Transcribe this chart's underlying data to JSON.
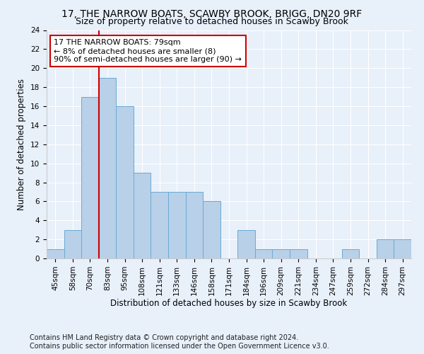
{
  "title": "17, THE NARROW BOATS, SCAWBY BROOK, BRIGG, DN20 9RF",
  "subtitle": "Size of property relative to detached houses in Scawby Brook",
  "xlabel": "Distribution of detached houses by size in Scawby Brook",
  "ylabel": "Number of detached properties",
  "bin_labels": [
    "45sqm",
    "58sqm",
    "70sqm",
    "83sqm",
    "95sqm",
    "108sqm",
    "121sqm",
    "133sqm",
    "146sqm",
    "158sqm",
    "171sqm",
    "184sqm",
    "196sqm",
    "209sqm",
    "221sqm",
    "234sqm",
    "247sqm",
    "259sqm",
    "272sqm",
    "284sqm",
    "297sqm"
  ],
  "bar_values": [
    1,
    3,
    17,
    19,
    16,
    9,
    7,
    7,
    7,
    6,
    0,
    3,
    1,
    1,
    1,
    0,
    0,
    1,
    0,
    2,
    2
  ],
  "bar_color": "#b8d0e8",
  "bar_edge_color": "#6aaad4",
  "annotation_box_text": "17 THE NARROW BOATS: 79sqm\n← 8% of detached houses are smaller (8)\n90% of semi-detached houses are larger (90) →",
  "annotation_box_color": "#ffffff",
  "annotation_box_edge_color": "#cc0000",
  "vline_color": "#cc0000",
  "ylim": [
    0,
    24
  ],
  "yticks": [
    0,
    2,
    4,
    6,
    8,
    10,
    12,
    14,
    16,
    18,
    20,
    22,
    24
  ],
  "footer_line1": "Contains HM Land Registry data © Crown copyright and database right 2024.",
  "footer_line2": "Contains public sector information licensed under the Open Government Licence v3.0.",
  "background_color": "#e8f0fa",
  "plot_bg_color": "#e8f0fa",
  "title_fontsize": 10,
  "subtitle_fontsize": 9,
  "axis_label_fontsize": 8.5,
  "tick_fontsize": 7.5,
  "annotation_fontsize": 8,
  "footer_fontsize": 7
}
